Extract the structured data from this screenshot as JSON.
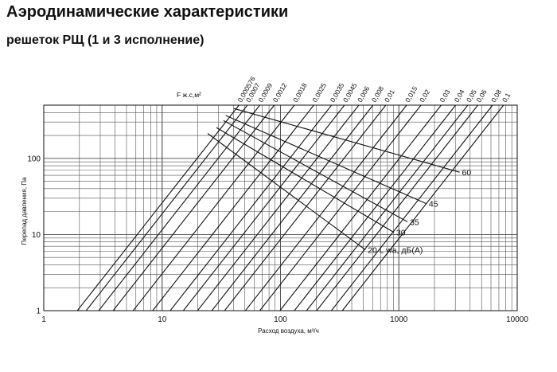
{
  "header": {
    "title": "Аэродинамические характеристики",
    "subtitle": "решеток РЩ (1 и 3 исполнение)"
  },
  "chart_data": {
    "type": "line",
    "title": "Аэродинамические характеристики",
    "subtitle": "решеток РЩ (1 и 3 исполнение)",
    "xlabel": "Расход воздуха, м³/ч",
    "ylabel": "Перепад давления, Па",
    "x_scale": "log",
    "y_scale": "log",
    "xlim": [
      1,
      10000
    ],
    "ylim": [
      1,
      500
    ],
    "x_ticks": [
      "1",
      "10",
      "100",
      "1000",
      "10000"
    ],
    "y_ticks": [
      "1",
      "10",
      "100"
    ],
    "grid": true,
    "area_legend_title": "F ж.с,м²",
    "area_series": [
      {
        "name": "0,000576",
        "x": [
          1.92,
          44.6
        ],
        "y": [
          1,
          500
        ]
      },
      {
        "name": "0,0007",
        "x": [
          2.28,
          52.5
        ],
        "y": [
          1,
          500
        ]
      },
      {
        "name": "0,0009",
        "x": [
          2.91,
          66.9
        ],
        "y": [
          1,
          500
        ]
      },
      {
        "name": "0,0012",
        "x": [
          3.85,
          88.6
        ],
        "y": [
          1,
          500
        ]
      },
      {
        "name": "0,0018",
        "x": [
          5.69,
          131
        ],
        "y": [
          1,
          500
        ]
      },
      {
        "name": "0,0025",
        "x": [
          8.32,
          191
        ],
        "y": [
          1,
          500
        ]
      },
      {
        "name": "0,0035",
        "x": [
          11.7,
          270
        ],
        "y": [
          1,
          500
        ]
      },
      {
        "name": "0,0045",
        "x": [
          15.1,
          347
        ],
        "y": [
          1,
          500
        ]
      },
      {
        "name": "0,006",
        "x": [
          19.9,
          459
        ],
        "y": [
          1,
          500
        ]
      },
      {
        "name": "0,008",
        "x": [
          26.3,
          605
        ],
        "y": [
          1,
          500
        ]
      },
      {
        "name": "0,01",
        "x": [
          33.7,
          776
        ],
        "y": [
          1,
          500
        ]
      },
      {
        "name": "0,015",
        "x": [
          50.5,
          1163
        ],
        "y": [
          1,
          500
        ]
      },
      {
        "name": "0,02",
        "x": [
          66.8,
          1538
        ],
        "y": [
          1,
          500
        ]
      },
      {
        "name": "0,03",
        "x": [
          98.9,
          2277
        ],
        "y": [
          1,
          500
        ]
      },
      {
        "name": "0,04",
        "x": [
          131,
          3017
        ],
        "y": [
          1,
          500
        ]
      },
      {
        "name": "0,05",
        "x": [
          166,
          3823
        ],
        "y": [
          1,
          500
        ]
      },
      {
        "name": "0,06",
        "x": [
          202,
          4650
        ],
        "y": [
          1,
          500
        ]
      },
      {
        "name": "0,08",
        "x": [
          269,
          6194
        ],
        "y": [
          1,
          500
        ]
      },
      {
        "name": "0,1",
        "x": [
          333,
          7669
        ],
        "y": [
          1,
          500
        ]
      }
    ],
    "noise_series": [
      {
        "name": "60",
        "x": [
          40.4,
          3258
        ],
        "y": [
          452,
          65.8
        ]
      },
      {
        "name": "45",
        "x": [
          34.5,
          1710
        ],
        "y": [
          366,
          25.4
        ]
      },
      {
        "name": "35",
        "x": [
          33.0,
          1183
        ],
        "y": [
          314,
          14.7
        ]
      },
      {
        "name": "30",
        "x": [
          28.7,
          906
        ],
        "y": [
          254,
          10.7
        ]
      },
      {
        "name": "20",
        "x": [
          24.3,
          521
        ],
        "y": [
          212,
          6.3
        ]
      }
    ],
    "noise_label_suffix": "L wa, дБ(А)"
  }
}
